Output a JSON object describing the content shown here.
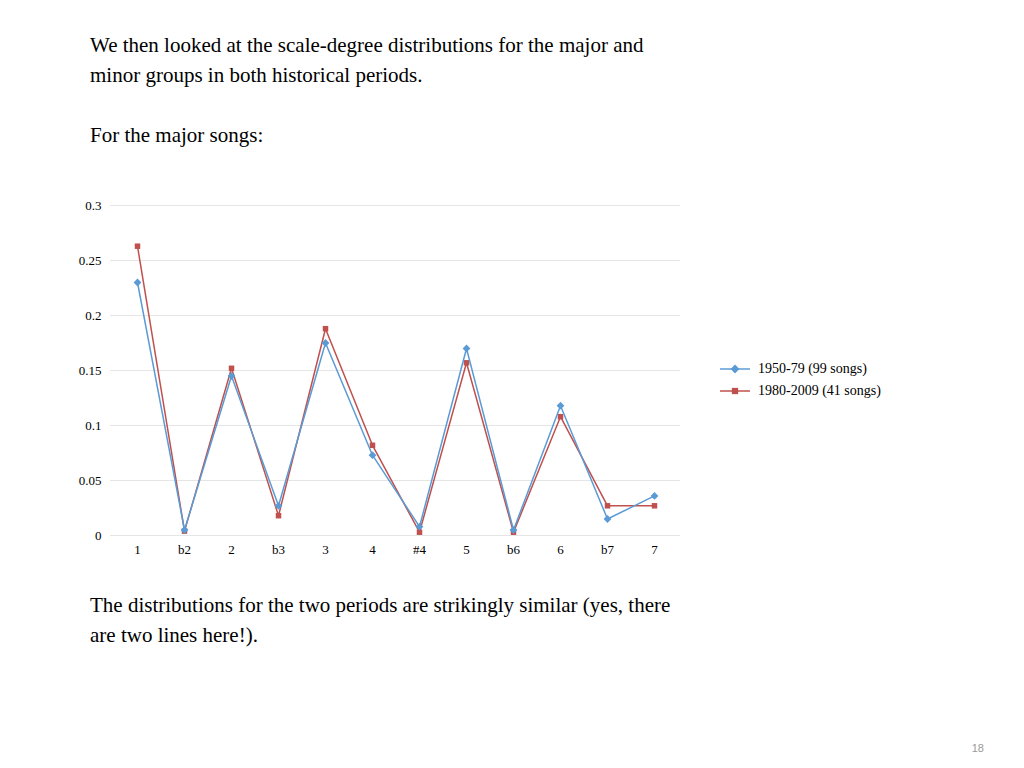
{
  "chart_data": {
    "type": "line",
    "subtitle": [
      "We then looked at the scale-degree distributions for the major and",
      "minor groups in both historical periods.",
      "For the major songs:"
    ],
    "caption": [
      "The distributions for the two periods are strikingly similar (yes, there",
      "are two lines here!)."
    ],
    "annotations": [
      "18"
    ],
    "categories": [
      "1",
      "b2",
      "2",
      "b3",
      "3",
      "4",
      "#4",
      "5",
      "b6",
      "6",
      "b7",
      "7"
    ],
    "series": [
      {
        "name": "1950-79 (99 songs)",
        "color": "#5B9BD5",
        "marker": "diamond",
        "values": [
          0.23,
          0.005,
          0.145,
          0.027,
          0.175,
          0.073,
          0.008,
          0.17,
          0.005,
          0.118,
          0.015,
          0.036
        ]
      },
      {
        "name": "1980-2009 (41 songs)",
        "color": "#C0504D",
        "marker": "square",
        "values": [
          0.263,
          0.004,
          0.152,
          0.018,
          0.188,
          0.082,
          0.003,
          0.157,
          0.003,
          0.108,
          0.027,
          0.027
        ]
      }
    ],
    "ylim": [
      0,
      0.3
    ],
    "yticks": [
      0,
      0.05,
      0.1,
      0.15,
      0.2,
      0.25,
      0.3
    ],
    "grid": true,
    "legend": "right"
  }
}
